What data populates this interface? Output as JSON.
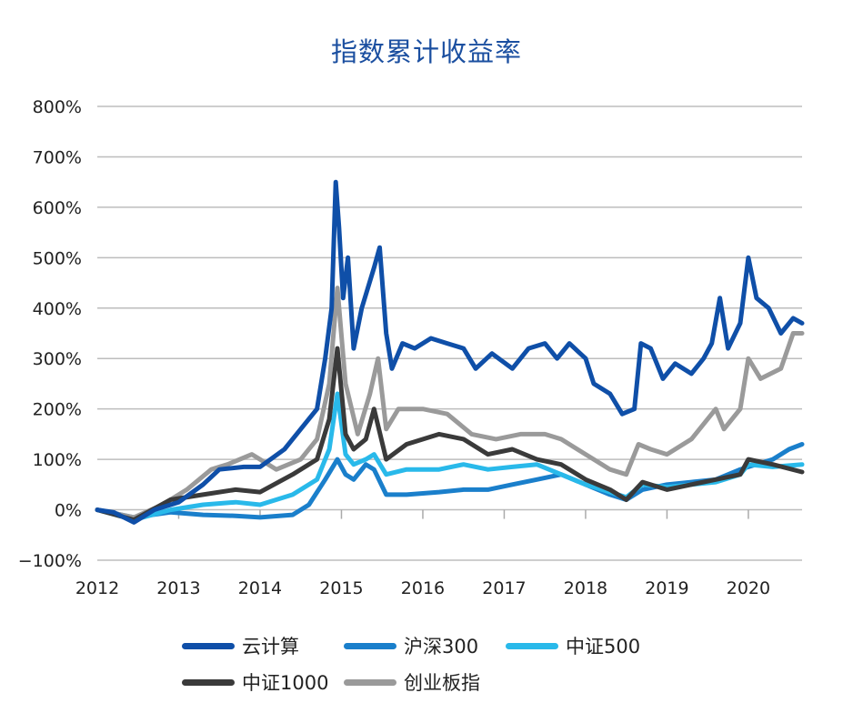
{
  "chart_data": {
    "type": "line",
    "title": "指数累计收益率",
    "xlabel": "",
    "ylabel": "",
    "xlim": [
      2012,
      2020.66
    ],
    "ylim": [
      -100,
      800
    ],
    "x_ticks": [
      "2012",
      "2013",
      "2014",
      "2015",
      "2016",
      "2017",
      "2018",
      "2019",
      "2020"
    ],
    "y_ticks": [
      "800%",
      "700%",
      "600%",
      "500%",
      "400%",
      "300%",
      "200%",
      "100%",
      "0%",
      "−100%"
    ],
    "y_tick_values": [
      800,
      700,
      600,
      500,
      400,
      300,
      200,
      100,
      0,
      -100
    ],
    "grid": "horizontal",
    "legend_position": "bottom",
    "series": [
      {
        "name": "沪深300",
        "color": "#1a7fcb",
        "points": [
          [
            2012,
            0
          ],
          [
            2012.45,
            -15
          ],
          [
            2012.9,
            -5
          ],
          [
            2013.3,
            -10
          ],
          [
            2013.7,
            -12
          ],
          [
            2014.0,
            -15
          ],
          [
            2014.4,
            -10
          ],
          [
            2014.6,
            10
          ],
          [
            2014.8,
            60
          ],
          [
            2014.95,
            100
          ],
          [
            2015.05,
            70
          ],
          [
            2015.15,
            60
          ],
          [
            2015.3,
            90
          ],
          [
            2015.4,
            80
          ],
          [
            2015.55,
            30
          ],
          [
            2015.8,
            30
          ],
          [
            2016.2,
            35
          ],
          [
            2016.5,
            40
          ],
          [
            2016.8,
            40
          ],
          [
            2017.1,
            50
          ],
          [
            2017.4,
            60
          ],
          [
            2017.7,
            70
          ],
          [
            2018.0,
            50
          ],
          [
            2018.3,
            30
          ],
          [
            2018.5,
            20
          ],
          [
            2018.7,
            40
          ],
          [
            2019.0,
            50
          ],
          [
            2019.3,
            55
          ],
          [
            2019.6,
            60
          ],
          [
            2019.9,
            80
          ],
          [
            2020.0,
            85
          ],
          [
            2020.3,
            100
          ],
          [
            2020.5,
            120
          ],
          [
            2020.66,
            130
          ]
        ]
      },
      {
        "name": "中证500",
        "color": "#29b9ea",
        "points": [
          [
            2012,
            0
          ],
          [
            2012.45,
            -20
          ],
          [
            2012.9,
            0
          ],
          [
            2013.3,
            10
          ],
          [
            2013.7,
            15
          ],
          [
            2014.0,
            10
          ],
          [
            2014.4,
            30
          ],
          [
            2014.7,
            60
          ],
          [
            2014.85,
            120
          ],
          [
            2014.95,
            230
          ],
          [
            2015.05,
            110
          ],
          [
            2015.15,
            90
          ],
          [
            2015.3,
            100
          ],
          [
            2015.4,
            110
          ],
          [
            2015.55,
            70
          ],
          [
            2015.8,
            80
          ],
          [
            2016.2,
            80
          ],
          [
            2016.5,
            90
          ],
          [
            2016.8,
            80
          ],
          [
            2017.1,
            85
          ],
          [
            2017.4,
            90
          ],
          [
            2017.7,
            70
          ],
          [
            2018.0,
            50
          ],
          [
            2018.3,
            35
          ],
          [
            2018.5,
            25
          ],
          [
            2018.7,
            50
          ],
          [
            2019.0,
            45
          ],
          [
            2019.3,
            50
          ],
          [
            2019.6,
            55
          ],
          [
            2019.9,
            70
          ],
          [
            2020.0,
            90
          ],
          [
            2020.3,
            85
          ],
          [
            2020.66,
            90
          ]
        ]
      },
      {
        "name": "创业板指",
        "color": "#9a9a9a",
        "points": [
          [
            2012,
            0
          ],
          [
            2012.45,
            -15
          ],
          [
            2012.8,
            10
          ],
          [
            2013.1,
            40
          ],
          [
            2013.4,
            80
          ],
          [
            2013.6,
            90
          ],
          [
            2013.9,
            110
          ],
          [
            2014.2,
            80
          ],
          [
            2014.5,
            100
          ],
          [
            2014.7,
            140
          ],
          [
            2014.85,
            250
          ],
          [
            2014.95,
            440
          ],
          [
            2015.05,
            250
          ],
          [
            2015.2,
            150
          ],
          [
            2015.35,
            230
          ],
          [
            2015.45,
            300
          ],
          [
            2015.55,
            160
          ],
          [
            2015.7,
            200
          ],
          [
            2016.0,
            200
          ],
          [
            2016.3,
            190
          ],
          [
            2016.6,
            150
          ],
          [
            2016.9,
            140
          ],
          [
            2017.2,
            150
          ],
          [
            2017.5,
            150
          ],
          [
            2017.7,
            140
          ],
          [
            2018.0,
            110
          ],
          [
            2018.3,
            80
          ],
          [
            2018.5,
            70
          ],
          [
            2018.65,
            130
          ],
          [
            2018.8,
            120
          ],
          [
            2019.0,
            110
          ],
          [
            2019.3,
            140
          ],
          [
            2019.6,
            200
          ],
          [
            2019.7,
            160
          ],
          [
            2019.9,
            200
          ],
          [
            2020.0,
            300
          ],
          [
            2020.15,
            260
          ],
          [
            2020.4,
            280
          ],
          [
            2020.55,
            350
          ],
          [
            2020.66,
            350
          ]
        ]
      },
      {
        "name": "中证1000",
        "color": "#3a3a3a",
        "points": [
          [
            2012,
            0
          ],
          [
            2012.45,
            -20
          ],
          [
            2012.9,
            20
          ],
          [
            2013.3,
            30
          ],
          [
            2013.7,
            40
          ],
          [
            2014.0,
            35
          ],
          [
            2014.4,
            70
          ],
          [
            2014.7,
            100
          ],
          [
            2014.85,
            180
          ],
          [
            2014.95,
            320
          ],
          [
            2015.05,
            150
          ],
          [
            2015.15,
            120
          ],
          [
            2015.3,
            140
          ],
          [
            2015.4,
            200
          ],
          [
            2015.55,
            100
          ],
          [
            2015.8,
            130
          ],
          [
            2016.2,
            150
          ],
          [
            2016.5,
            140
          ],
          [
            2016.8,
            110
          ],
          [
            2017.1,
            120
          ],
          [
            2017.4,
            100
          ],
          [
            2017.7,
            90
          ],
          [
            2018.0,
            60
          ],
          [
            2018.3,
            40
          ],
          [
            2018.5,
            20
          ],
          [
            2018.7,
            55
          ],
          [
            2019.0,
            40
          ],
          [
            2019.3,
            50
          ],
          [
            2019.6,
            60
          ],
          [
            2019.9,
            70
          ],
          [
            2020.0,
            100
          ],
          [
            2020.3,
            90
          ],
          [
            2020.66,
            75
          ]
        ]
      },
      {
        "name": "云计算",
        "color": "#0f4fa8",
        "points": [
          [
            2012,
            0
          ],
          [
            2012.2,
            -5
          ],
          [
            2012.45,
            -25
          ],
          [
            2012.7,
            0
          ],
          [
            2013,
            15
          ],
          [
            2013.3,
            50
          ],
          [
            2013.5,
            80
          ],
          [
            2013.8,
            85
          ],
          [
            2014,
            85
          ],
          [
            2014.3,
            120
          ],
          [
            2014.5,
            160
          ],
          [
            2014.7,
            200
          ],
          [
            2014.8,
            300
          ],
          [
            2014.88,
            400
          ],
          [
            2014.93,
            650
          ],
          [
            2014.97,
            560
          ],
          [
            2015.02,
            420
          ],
          [
            2015.08,
            500
          ],
          [
            2015.15,
            320
          ],
          [
            2015.25,
            400
          ],
          [
            2015.4,
            480
          ],
          [
            2015.47,
            520
          ],
          [
            2015.55,
            350
          ],
          [
            2015.62,
            280
          ],
          [
            2015.75,
            330
          ],
          [
            2015.9,
            320
          ],
          [
            2016.1,
            340
          ],
          [
            2016.3,
            330
          ],
          [
            2016.5,
            320
          ],
          [
            2016.65,
            280
          ],
          [
            2016.85,
            310
          ],
          [
            2017.1,
            280
          ],
          [
            2017.3,
            320
          ],
          [
            2017.5,
            330
          ],
          [
            2017.65,
            300
          ],
          [
            2017.8,
            330
          ],
          [
            2018.0,
            300
          ],
          [
            2018.1,
            250
          ],
          [
            2018.3,
            230
          ],
          [
            2018.45,
            190
          ],
          [
            2018.6,
            200
          ],
          [
            2018.68,
            330
          ],
          [
            2018.8,
            320
          ],
          [
            2018.95,
            260
          ],
          [
            2019.1,
            290
          ],
          [
            2019.3,
            270
          ],
          [
            2019.45,
            300
          ],
          [
            2019.55,
            330
          ],
          [
            2019.65,
            420
          ],
          [
            2019.75,
            320
          ],
          [
            2019.9,
            370
          ],
          [
            2020.0,
            500
          ],
          [
            2020.1,
            420
          ],
          [
            2020.25,
            400
          ],
          [
            2020.4,
            350
          ],
          [
            2020.55,
            380
          ],
          [
            2020.66,
            370
          ]
        ]
      }
    ],
    "legend": [
      {
        "name": "云计算",
        "color": "#0f4fa8"
      },
      {
        "name": "沪深300",
        "color": "#1a7fcb"
      },
      {
        "name": "中证500",
        "color": "#29b9ea"
      },
      {
        "name": "中证1000",
        "color": "#3a3a3a"
      },
      {
        "name": "创业板指",
        "color": "#9a9a9a"
      }
    ]
  }
}
